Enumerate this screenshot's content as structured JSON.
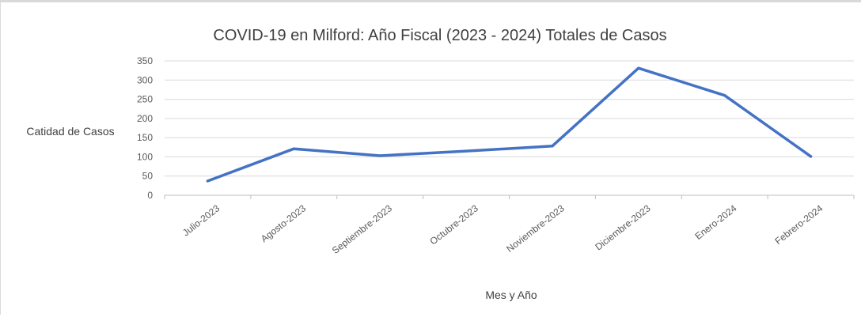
{
  "chart_data": {
    "type": "line",
    "title": "COVID-19 en Milford: Año Fiscal (2023 - 2024) Totales de Casos",
    "xlabel": "Mes y Año",
    "ylabel": "Catidad de Casos",
    "categories": [
      "Julio-2023",
      "Agosto-2023",
      "Septiembre-2023",
      "Octubre-2023",
      "Noviembre-2023",
      "Diciembre-2023",
      "Enero-2024",
      "Febrero-2024"
    ],
    "series": [
      {
        "values": [
          37,
          121,
          103,
          115,
          128,
          331,
          260,
          101
        ],
        "color": "#4472c4"
      }
    ],
    "ylim": [
      0,
      350
    ],
    "yticks": [
      0,
      50,
      100,
      150,
      200,
      250,
      300,
      350
    ],
    "grid": true,
    "legend": "none"
  }
}
